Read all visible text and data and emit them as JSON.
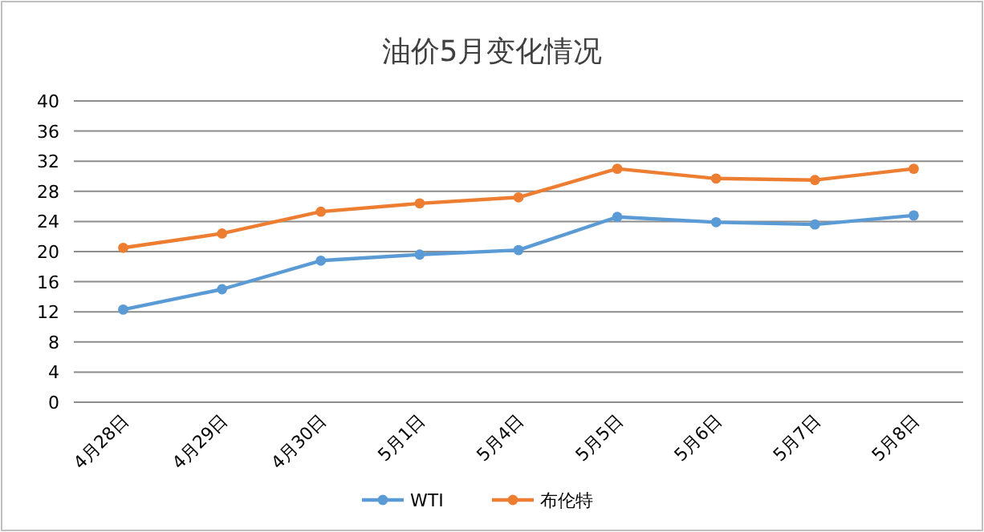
{
  "chart_data": {
    "type": "line",
    "title": "油价5月变化情况",
    "categories": [
      "4月28日",
      "4月29日",
      "4月30日",
      "5月1日",
      "5月4日",
      "5月5日",
      "5月6日",
      "5月7日",
      "5月8日"
    ],
    "series": [
      {
        "name": "WTI",
        "color": "#5b9bd5",
        "values": [
          12.3,
          15.0,
          18.8,
          19.6,
          20.2,
          24.6,
          23.9,
          23.6,
          24.8
        ]
      },
      {
        "name": "布伦特",
        "color": "#ed7d31",
        "values": [
          20.5,
          22.4,
          25.3,
          26.4,
          27.2,
          31.0,
          29.7,
          29.5,
          31.0
        ]
      }
    ],
    "ylim": [
      0,
      40
    ],
    "yticks": [
      0,
      4,
      8,
      12,
      16,
      20,
      24,
      28,
      32,
      36,
      40
    ],
    "grid": "y",
    "legend": "bottom",
    "marker": "circle",
    "line_style": "solid"
  }
}
